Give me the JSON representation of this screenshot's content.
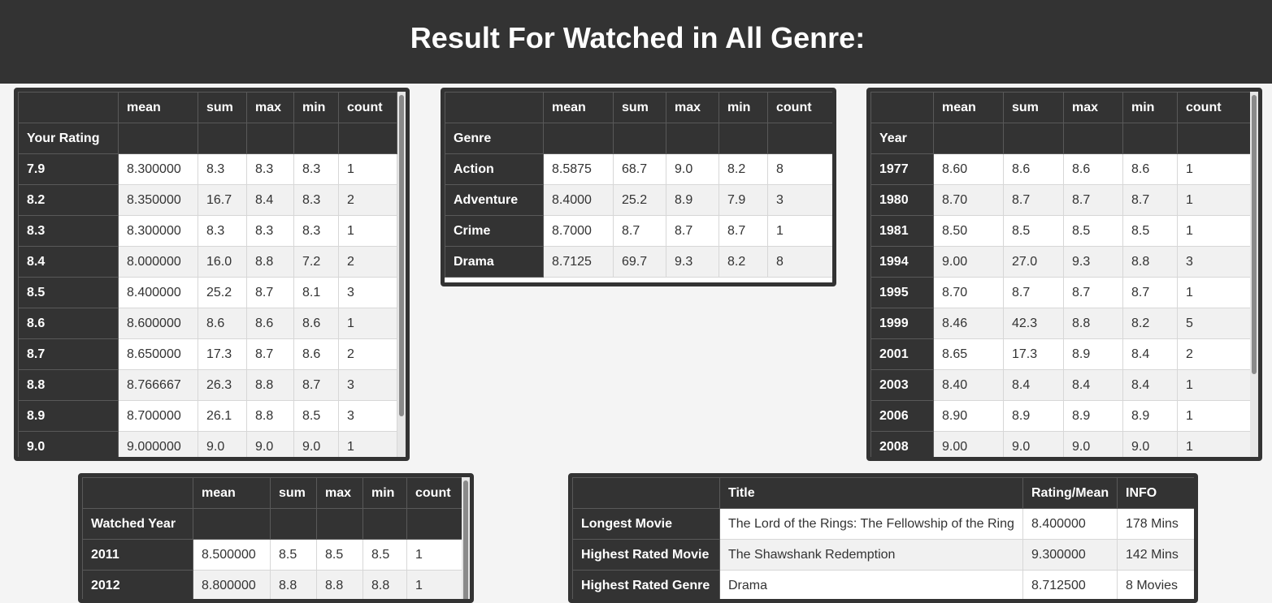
{
  "header": {
    "title": "Result For Watched in All Genre:"
  },
  "stat_columns": [
    "mean",
    "sum",
    "max",
    "min",
    "count"
  ],
  "rating_table": {
    "index_name": "Your Rating",
    "rows": [
      [
        "7.9",
        "8.300000",
        "8.3",
        "8.3",
        "8.3",
        "1"
      ],
      [
        "8.2",
        "8.350000",
        "16.7",
        "8.4",
        "8.3",
        "2"
      ],
      [
        "8.3",
        "8.300000",
        "8.3",
        "8.3",
        "8.3",
        "1"
      ],
      [
        "8.4",
        "8.000000",
        "16.0",
        "8.8",
        "7.2",
        "2"
      ],
      [
        "8.5",
        "8.400000",
        "25.2",
        "8.7",
        "8.1",
        "3"
      ],
      [
        "8.6",
        "8.600000",
        "8.6",
        "8.6",
        "8.6",
        "1"
      ],
      [
        "8.7",
        "8.650000",
        "17.3",
        "8.7",
        "8.6",
        "2"
      ],
      [
        "8.8",
        "8.766667",
        "26.3",
        "8.8",
        "8.7",
        "3"
      ],
      [
        "8.9",
        "8.700000",
        "26.1",
        "8.8",
        "8.5",
        "3"
      ],
      [
        "9.0",
        "9.000000",
        "9.0",
        "9.0",
        "9.0",
        "1"
      ]
    ]
  },
  "genre_table": {
    "index_name": "Genre",
    "rows": [
      [
        "Action",
        "8.5875",
        "68.7",
        "9.0",
        "8.2",
        "8"
      ],
      [
        "Adventure",
        "8.4000",
        "25.2",
        "8.9",
        "7.9",
        "3"
      ],
      [
        "Crime",
        "8.7000",
        "8.7",
        "8.7",
        "8.7",
        "1"
      ],
      [
        "Drama",
        "8.7125",
        "69.7",
        "9.3",
        "8.2",
        "8"
      ]
    ]
  },
  "year_table": {
    "index_name": "Year",
    "rows": [
      [
        "1977",
        "8.60",
        "8.6",
        "8.6",
        "8.6",
        "1"
      ],
      [
        "1980",
        "8.70",
        "8.7",
        "8.7",
        "8.7",
        "1"
      ],
      [
        "1981",
        "8.50",
        "8.5",
        "8.5",
        "8.5",
        "1"
      ],
      [
        "1994",
        "9.00",
        "27.0",
        "9.3",
        "8.8",
        "3"
      ],
      [
        "1995",
        "8.70",
        "8.7",
        "8.7",
        "8.7",
        "1"
      ],
      [
        "1999",
        "8.46",
        "42.3",
        "8.8",
        "8.2",
        "5"
      ],
      [
        "2001",
        "8.65",
        "17.3",
        "8.9",
        "8.4",
        "2"
      ],
      [
        "2003",
        "8.40",
        "8.4",
        "8.4",
        "8.4",
        "1"
      ],
      [
        "2006",
        "8.90",
        "8.9",
        "8.9",
        "8.9",
        "1"
      ],
      [
        "2008",
        "9.00",
        "9.0",
        "9.0",
        "9.0",
        "1"
      ]
    ]
  },
  "watched_year_table": {
    "index_name": "Watched Year",
    "rows": [
      [
        "2011",
        "8.500000",
        "8.5",
        "8.5",
        "8.5",
        "1"
      ],
      [
        "2012",
        "8.800000",
        "8.8",
        "8.8",
        "8.8",
        "1"
      ]
    ]
  },
  "highlights_table": {
    "columns": [
      "Title",
      "Rating/Mean",
      "INFO"
    ],
    "rows": [
      [
        "Longest Movie",
        "The Lord of the Rings: The Fellowship of the Ring",
        "8.400000",
        "178 Mins"
      ],
      [
        "Highest Rated Movie",
        "The Shawshank Redemption",
        "9.300000",
        "142 Mins"
      ],
      [
        "Highest Rated Genre",
        "Drama",
        "8.712500",
        "8 Movies"
      ]
    ]
  },
  "colors": {
    "header_bg": "#333333",
    "page_bg": "#f4f4f4",
    "row_alt": "#f1f1f1"
  }
}
